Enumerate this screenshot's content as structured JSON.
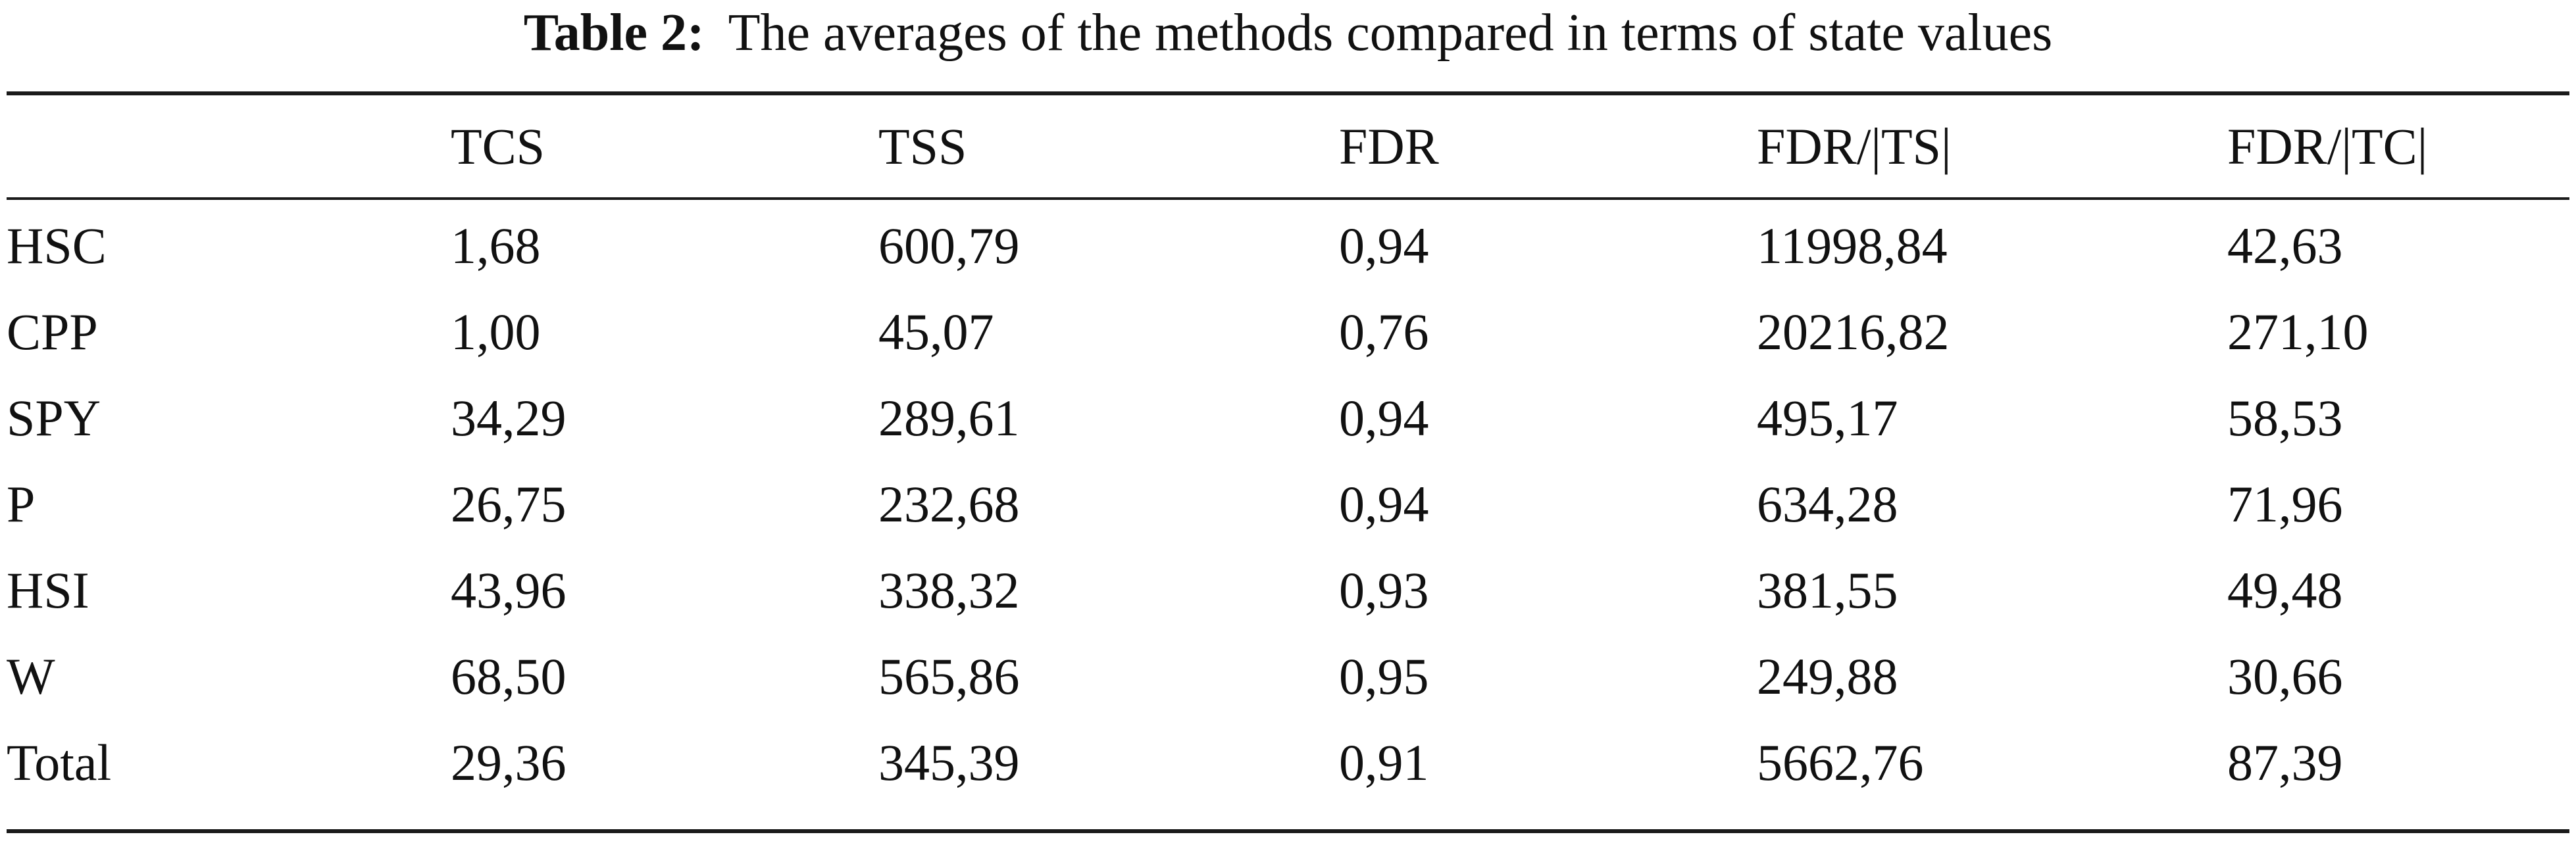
{
  "caption": {
    "label": "Table 2:",
    "text": "The averages of the methods compared in terms of state values"
  },
  "table": {
    "columns": [
      "",
      "TCS",
      "TSS",
      "FDR",
      "FDR/|TS|",
      "FDR/|TC|"
    ],
    "rows": [
      [
        "HSC",
        "1,68",
        "600,79",
        "0,94",
        "11998,84",
        "42,63"
      ],
      [
        "CPP",
        "1,00",
        "45,07",
        "0,76",
        "20216,82",
        "271,10"
      ],
      [
        "SPY",
        "34,29",
        "289,61",
        "0,94",
        "495,17",
        "58,53"
      ],
      [
        "P",
        "26,75",
        "232,68",
        "0,94",
        "634,28",
        "71,96"
      ],
      [
        "HSI",
        "43,96",
        "338,32",
        "0,93",
        "381,55",
        "49,48"
      ],
      [
        "W",
        "68,50",
        "565,86",
        "0,95",
        "249,88",
        "30,66"
      ],
      [
        "Total",
        "29,36",
        "345,39",
        "0,91",
        "5662,76",
        "87,39"
      ]
    ]
  }
}
